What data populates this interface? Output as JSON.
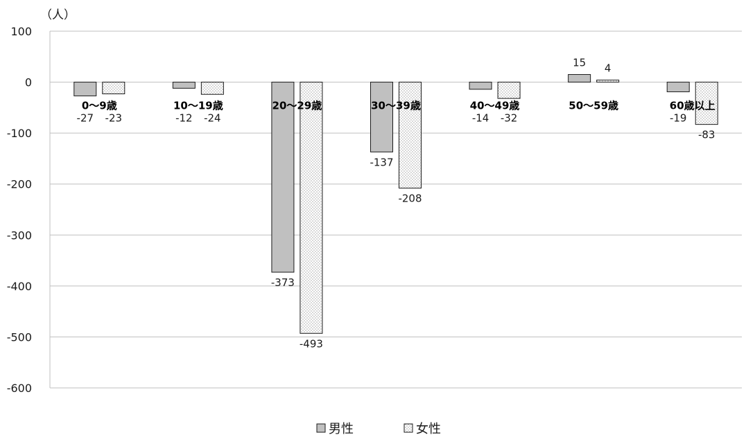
{
  "chart_data": {
    "type": "bar",
    "unit_label": "（人）",
    "categories": [
      "0～9歳",
      "10～19歳",
      "20～29歳",
      "30～39歳",
      "40～49歳",
      "50～59歳",
      "60歳以上"
    ],
    "series": [
      {
        "name": "男性",
        "values": [
          -27,
          -12,
          -373,
          -137,
          -14,
          15,
          -19
        ],
        "fill": "#c0c0c0",
        "pattern": "solid"
      },
      {
        "name": "女性",
        "values": [
          -23,
          -24,
          -493,
          -208,
          -32,
          4,
          -83
        ],
        "fill": "#ffffff",
        "pattern": "dotted"
      }
    ],
    "ylim": [
      -600,
      100
    ],
    "yticks": [
      100,
      0,
      -100,
      -200,
      -300,
      -400,
      -500,
      -600
    ],
    "grid": true,
    "legend_position": "bottom-center"
  }
}
